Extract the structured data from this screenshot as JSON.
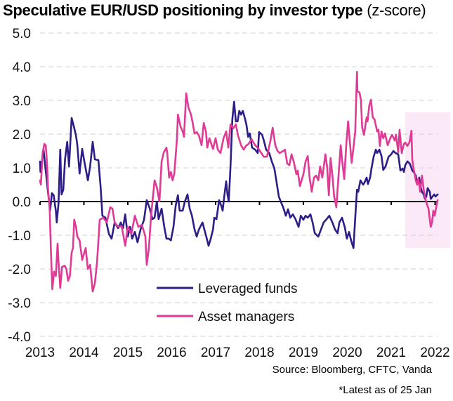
{
  "title": {
    "bold": "Speculative EUR/USD positioning by investor type",
    "light": "(z-score)"
  },
  "source": "Source: Bloomberg, CFTC, Vanda",
  "note": "*Latest as of 25 Jan",
  "chart_data": {
    "type": "line",
    "title": "Speculative EUR/USD positioning by investor type (z-score)",
    "xlabel": "",
    "ylabel": "",
    "xlim": [
      2013,
      2022.1
    ],
    "ylim": [
      -4.0,
      5.0
    ],
    "x_ticks": [
      "2013",
      "2014",
      "2015",
      "2016",
      "2017",
      "2018",
      "2019",
      "2020",
      "2021",
      "2022"
    ],
    "y_ticks": [
      "5.0",
      "4.0",
      "3.0",
      "2.0",
      "1.0",
      "0.0",
      "-1.0",
      "-2.0",
      "-3.0",
      "-4.0"
    ],
    "y_tick_values": [
      5,
      4,
      3,
      2,
      1,
      0,
      -1,
      -2,
      -3,
      -4
    ],
    "grid": "horizontal dashed",
    "legend": "lower-center",
    "highlight_region": {
      "x": [
        2021.32,
        2022.35
      ],
      "y": [
        -1.38,
        2.65
      ],
      "color": "#FCE9F7"
    },
    "series": [
      {
        "name": "Leveraged funds",
        "color": "#2D1E87",
        "x": [
          2013.0,
          2013.01,
          2013.08,
          2013.11,
          2013.18,
          2013.23,
          2013.27,
          2013.31,
          2013.36,
          2013.38,
          2013.42,
          2013.46,
          2013.49,
          2013.53,
          2013.57,
          2013.62,
          2013.66,
          2013.72,
          2013.77,
          2013.82,
          2013.85,
          2013.9,
          2013.96,
          2014.01,
          2014.09,
          2014.14,
          2014.2,
          2014.25,
          2014.33,
          2014.38,
          2014.42,
          2014.49,
          2014.57,
          2014.63,
          2014.7,
          2014.78,
          2014.84,
          2014.89,
          2014.94,
          2015.0,
          2015.05,
          2015.1,
          2015.16,
          2015.22,
          2015.29,
          2015.37,
          2015.43,
          2015.5,
          2015.56,
          2015.61,
          2015.66,
          2015.7,
          2015.77,
          2015.83,
          2015.88,
          2015.93,
          2015.98,
          2016.04,
          2016.09,
          2016.14,
          2016.18,
          2016.25,
          2016.3,
          2016.36,
          2016.41,
          2016.46,
          2016.52,
          2016.57,
          2016.62,
          2016.7,
          2016.78,
          2016.84,
          2016.89,
          2016.94,
          2016.97,
          2017.02,
          2017.08,
          2017.13,
          2017.16,
          2017.19,
          2017.24,
          2017.27,
          2017.3,
          2017.34,
          2017.38,
          2017.42,
          2017.46,
          2017.5,
          2017.54,
          2017.58,
          2017.62,
          2017.66,
          2017.7,
          2017.74,
          2017.78,
          2017.83,
          2017.9,
          2017.96,
          2017.99,
          2018.06,
          2018.1,
          2018.15,
          2018.22,
          2018.28,
          2018.34,
          2018.39,
          2018.44,
          2018.49,
          2018.54,
          2018.6,
          2018.65,
          2018.7,
          2018.76,
          2018.82,
          2018.89,
          2018.94,
          2019.0,
          2019.05,
          2019.1,
          2019.16,
          2019.21,
          2019.26,
          2019.34,
          2019.4,
          2019.46,
          2019.53,
          2019.59,
          2019.66,
          2019.72,
          2019.78,
          2019.82,
          2019.88,
          2019.94,
          2019.99,
          2020.04,
          2020.09,
          2020.14,
          2020.18,
          2020.22,
          2020.25,
          2020.3,
          2020.36,
          2020.39,
          2020.44,
          2020.47,
          2020.52,
          2020.55,
          2020.6,
          2020.65,
          2020.68,
          2020.73,
          2020.78,
          2020.82,
          2020.87,
          2020.94,
          2021.0,
          2021.05,
          2021.1,
          2021.16,
          2021.21,
          2021.26,
          2021.29,
          2021.32,
          2021.37,
          2021.42,
          2021.45,
          2021.48,
          2021.51,
          2021.56,
          2021.59,
          2021.64,
          2021.66,
          2021.7,
          2021.74,
          2021.77,
          2021.8,
          2021.83,
          2021.88,
          2021.9,
          2021.94,
          2021.98,
          2022.01,
          2022.06
        ],
        "values": [
          1.19,
          0.88,
          1.54,
          1.15,
          0.29,
          -0.27,
          0.25,
          0.19,
          -0.27,
          -0.62,
          -0.06,
          1.54,
          0.21,
          0.35,
          1.25,
          1.77,
          1.04,
          2.48,
          2.23,
          1.96,
          1.67,
          0.83,
          1.56,
          1.19,
          0.63,
          1.04,
          1.77,
          1.25,
          1.23,
          0.42,
          -0.42,
          -0.48,
          -0.96,
          -1.1,
          -0.62,
          -0.79,
          -0.62,
          -0.79,
          -0.38,
          -1.04,
          -0.75,
          -1.1,
          -0.9,
          -1.21,
          -0.83,
          -0.54,
          0.04,
          -0.21,
          -0.52,
          -0.48,
          0.0,
          -0.52,
          -0.21,
          -0.75,
          -1.1,
          -1.1,
          -1.15,
          -0.75,
          -0.13,
          0.19,
          -0.27,
          -0.27,
          0.0,
          0.21,
          -0.21,
          -0.42,
          -0.83,
          -1.04,
          -0.83,
          -0.62,
          -1.0,
          -1.31,
          -1.1,
          -0.83,
          -0.48,
          -0.52,
          0.04,
          -0.13,
          -0.27,
          0.08,
          0.6,
          0.21,
          0.0,
          1.04,
          2.44,
          2.96,
          2.38,
          2.38,
          2.69,
          2.58,
          2.69,
          2.5,
          2.29,
          1.92,
          2.02,
          1.6,
          1.54,
          1.44,
          2.06,
          1.98,
          1.81,
          1.54,
          1.44,
          1.19,
          0.98,
          0.56,
          0.15,
          -0.02,
          -0.17,
          -0.42,
          -0.23,
          -0.48,
          -0.38,
          -0.52,
          -0.75,
          -0.42,
          -0.54,
          -0.42,
          -0.48,
          -0.38,
          -0.62,
          -0.94,
          -1.04,
          -0.83,
          -0.62,
          -0.52,
          -0.42,
          -0.62,
          -0.83,
          -0.94,
          -0.62,
          -0.48,
          -0.75,
          -1.1,
          -0.9,
          -1.17,
          -1.38,
          -0.48,
          0.35,
          0.29,
          0.63,
          0.5,
          0.56,
          0.71,
          0.52,
          0.71,
          0.98,
          1.33,
          1.54,
          1.44,
          1.54,
          1.35,
          0.94,
          1.04,
          1.33,
          1.4,
          1.5,
          1.44,
          1.4,
          0.92,
          0.98,
          0.88,
          1.08,
          1.19,
          1.13,
          1.04,
          0.92,
          0.88,
          0.77,
          0.56,
          0.71,
          0.5,
          0.29,
          0.21,
          0.08,
          0.15,
          0.4,
          0.29,
          0.08,
          0.15,
          0.21,
          0.15,
          0.21
        ]
      },
      {
        "name": "Asset managers",
        "color": "#DE3A96",
        "x": [
          2013.0,
          2013.02,
          2013.06,
          2013.1,
          2013.13,
          2013.16,
          2013.18,
          2013.22,
          2013.25,
          2013.28,
          2013.32,
          2013.36,
          2013.4,
          2013.42,
          2013.46,
          2013.5,
          2013.56,
          2013.6,
          2013.64,
          2013.68,
          2013.72,
          2013.75,
          2013.78,
          2013.82,
          2013.85,
          2013.9,
          2013.96,
          2014.04,
          2014.09,
          2014.14,
          2014.2,
          2014.25,
          2014.3,
          2014.36,
          2014.44,
          2014.52,
          2014.6,
          2014.65,
          2014.7,
          2014.78,
          2014.86,
          2014.94,
          2015.0,
          2015.08,
          2015.16,
          2015.24,
          2015.32,
          2015.4,
          2015.43,
          2015.48,
          2015.53,
          2015.61,
          2015.66,
          2015.72,
          2015.77,
          2015.82,
          2015.88,
          2015.9,
          2015.94,
          2015.98,
          2016.02,
          2016.06,
          2016.12,
          2016.14,
          2016.2,
          2016.25,
          2016.28,
          2016.33,
          2016.38,
          2016.44,
          2016.47,
          2016.52,
          2016.57,
          2016.62,
          2016.68,
          2016.73,
          2016.78,
          2016.81,
          2016.86,
          2016.94,
          2017.0,
          2017.05,
          2017.11,
          2017.18,
          2017.24,
          2017.29,
          2017.34,
          2017.4,
          2017.46,
          2017.51,
          2017.58,
          2017.64,
          2017.69,
          2017.75,
          2017.82,
          2017.9,
          2017.98,
          2018.04,
          2018.1,
          2018.17,
          2018.25,
          2018.3,
          2018.36,
          2018.41,
          2018.46,
          2018.54,
          2018.58,
          2018.63,
          2018.68,
          2018.73,
          2018.78,
          2018.84,
          2018.87,
          2018.92,
          2019.0,
          2019.05,
          2019.1,
          2019.14,
          2019.19,
          2019.24,
          2019.29,
          2019.34,
          2019.38,
          2019.43,
          2019.5,
          2019.54,
          2019.58,
          2019.62,
          2019.66,
          2019.7,
          2019.75,
          2019.8,
          2019.85,
          2019.88,
          2019.93,
          2019.98,
          2020.02,
          2020.06,
          2020.1,
          2020.14,
          2020.18,
          2020.22,
          2020.23,
          2020.28,
          2020.31,
          2020.34,
          2020.38,
          2020.44,
          2020.46,
          2020.5,
          2020.54,
          2020.58,
          2020.62,
          2020.68,
          2020.71,
          2020.74,
          2020.78,
          2020.82,
          2020.86,
          2020.92,
          2020.97,
          2021.02,
          2021.08,
          2021.11,
          2021.16,
          2021.19,
          2021.24,
          2021.29,
          2021.32,
          2021.37,
          2021.42,
          2021.46,
          2021.48,
          2021.51,
          2021.56,
          2021.59,
          2021.62,
          2021.66,
          2021.7,
          2021.74,
          2021.78,
          2021.82,
          2021.85,
          2021.88,
          2021.9,
          2021.93,
          2021.96,
          2021.99,
          2022.04,
          2022.06
        ],
        "values": [
          0.63,
          0.5,
          1.44,
          1.71,
          1.67,
          1.13,
          0.42,
          -0.27,
          -1.52,
          -2.6,
          -2.08,
          -2.21,
          -1.25,
          -1.79,
          -2.56,
          -1.94,
          -1.9,
          -2.0,
          -2.35,
          -2.21,
          -1.52,
          -1.38,
          -0.54,
          -0.75,
          -1.04,
          -1.15,
          -1.73,
          -1.38,
          -2.0,
          -1.88,
          -2.67,
          -2.42,
          -1.79,
          -0.54,
          -0.48,
          -0.62,
          -0.17,
          -0.21,
          -0.62,
          -0.75,
          -0.73,
          -1.31,
          -0.75,
          -0.96,
          -0.42,
          -0.75,
          -0.69,
          -1.04,
          -1.88,
          -1.38,
          -0.42,
          0.63,
          0.42,
          0.0,
          1.19,
          1.46,
          1.6,
          1.4,
          0.71,
          0.88,
          0.63,
          0.83,
          1.88,
          2.58,
          2.23,
          2.08,
          1.92,
          3.21,
          2.79,
          2.58,
          2.38,
          2.02,
          2.06,
          1.96,
          1.67,
          2.33,
          2.08,
          1.6,
          1.88,
          1.56,
          1.88,
          1.54,
          1.44,
          1.88,
          2.08,
          1.6,
          2.29,
          2.17,
          2.29,
          1.96,
          1.67,
          1.54,
          1.65,
          1.71,
          1.85,
          1.67,
          1.56,
          1.44,
          1.33,
          1.33,
          1.81,
          2.19,
          1.67,
          1.5,
          1.44,
          1.5,
          1.54,
          1.13,
          1.08,
          1.4,
          1.19,
          0.81,
          0.92,
          0.46,
          0.81,
          1.19,
          1.35,
          0.71,
          0.29,
          0.71,
          0.77,
          0.63,
          1.04,
          0.71,
          1.4,
          1.04,
          0.19,
          1.29,
          0.77,
          0.15,
          -0.17,
          0.77,
          1.67,
          1.25,
          0.67,
          1.77,
          2.38,
          1.75,
          1.15,
          1.6,
          2.08,
          3.85,
          3.27,
          3.23,
          3.0,
          2.19,
          1.98,
          2.5,
          2.38,
          2.85,
          3.02,
          2.5,
          2.44,
          2.08,
          2.13,
          1.65,
          2.08,
          1.88,
          2.02,
          1.67,
          1.85,
          1.98,
          1.81,
          1.98,
          1.46,
          2.13,
          1.44,
          1.71,
          1.75,
          1.65,
          1.77,
          2.1,
          1.25,
          0.98,
          0.63,
          0.5,
          0.67,
          0.29,
          0.77,
          0.35,
          0.08,
          -0.1,
          -0.21,
          -0.54,
          -0.75,
          -0.62,
          -0.27,
          -0.42,
          -0.06,
          0.04
        ]
      }
    ]
  }
}
